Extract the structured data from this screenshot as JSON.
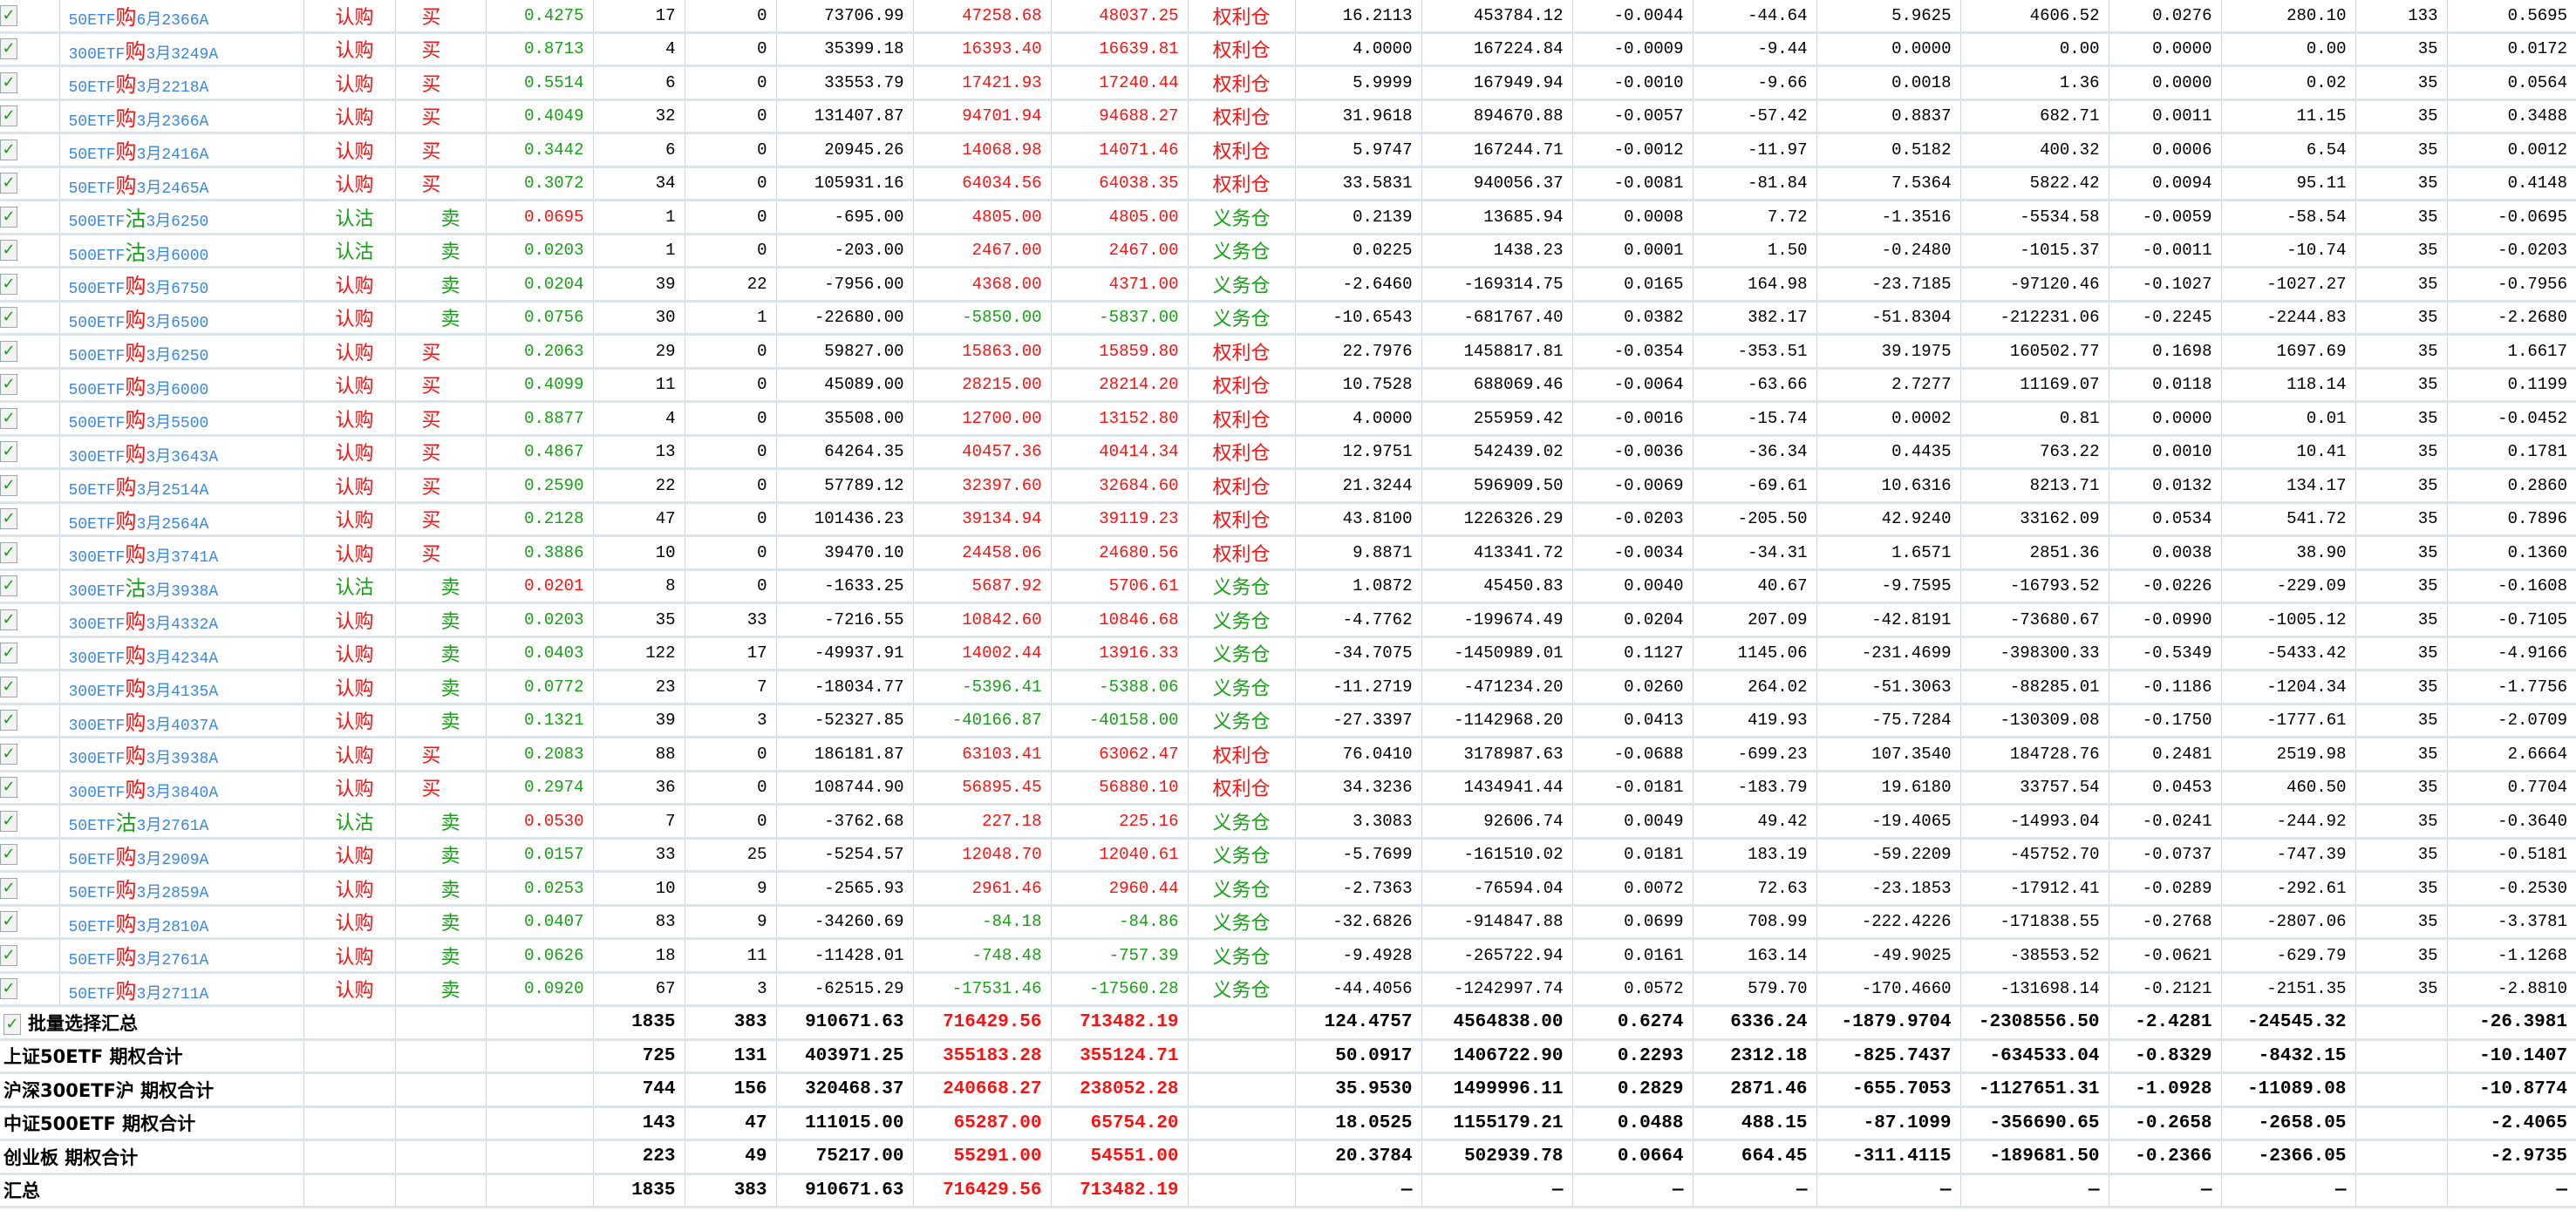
{
  "colors": {
    "red": "#ff1010",
    "green": "#16a016",
    "blue": "#3a86e6",
    "grid": "#c9d5e1"
  },
  "icons": {
    "checkbox": "checkbox-checked-icon"
  },
  "rows": [
    [
      "50ETF购6月2366A",
      "认购",
      "买",
      "0.4275",
      "green",
      "17",
      "0",
      "73706.99",
      "47258.68",
      "48037.25",
      "权利仓",
      "16.2113",
      "453784.12",
      "-0.0044",
      "-44.64",
      "5.9625",
      "4606.52",
      "0.0276",
      "280.10",
      "133",
      "0.5695"
    ],
    [
      "300ETF购3月3249A",
      "认购",
      "买",
      "0.8713",
      "green",
      "4",
      "0",
      "35399.18",
      "16393.40",
      "16639.81",
      "权利仓",
      "4.0000",
      "167224.84",
      "-0.0009",
      "-9.44",
      "0.0000",
      "0.00",
      "0.0000",
      "0.00",
      "35",
      "0.0172"
    ],
    [
      "50ETF购3月2218A",
      "认购",
      "买",
      "0.5514",
      "green",
      "6",
      "0",
      "33553.79",
      "17421.93",
      "17240.44",
      "权利仓",
      "5.9999",
      "167949.94",
      "-0.0010",
      "-9.66",
      "0.0018",
      "1.36",
      "0.0000",
      "0.02",
      "35",
      "0.0564"
    ],
    [
      "50ETF购3月2366A",
      "认购",
      "买",
      "0.4049",
      "green",
      "32",
      "0",
      "131407.87",
      "94701.94",
      "94688.27",
      "权利仓",
      "31.9618",
      "894670.88",
      "-0.0057",
      "-57.42",
      "0.8837",
      "682.71",
      "0.0011",
      "11.15",
      "35",
      "0.3488"
    ],
    [
      "50ETF购3月2416A",
      "认购",
      "买",
      "0.3442",
      "green",
      "6",
      "0",
      "20945.26",
      "14068.98",
      "14071.46",
      "权利仓",
      "5.9747",
      "167244.71",
      "-0.0012",
      "-11.97",
      "0.5182",
      "400.32",
      "0.0006",
      "6.54",
      "35",
      "0.0012"
    ],
    [
      "50ETF购3月2465A",
      "认购",
      "买",
      "0.3072",
      "green",
      "34",
      "0",
      "105931.16",
      "64034.56",
      "64038.35",
      "权利仓",
      "33.5831",
      "940056.37",
      "-0.0081",
      "-81.84",
      "7.5364",
      "5822.42",
      "0.0094",
      "95.11",
      "35",
      "0.4148"
    ],
    [
      "500ETF沽3月6250",
      "认沽",
      "卖",
      "0.0695",
      "red",
      "1",
      "0",
      "-695.00",
      "4805.00",
      "4805.00",
      "义务仓",
      "0.2139",
      "13685.94",
      "0.0008",
      "7.72",
      "-1.3516",
      "-5534.58",
      "-0.0059",
      "-58.54",
      "35",
      "-0.0695"
    ],
    [
      "500ETF沽3月6000",
      "认沽",
      "卖",
      "0.0203",
      "green",
      "1",
      "0",
      "-203.00",
      "2467.00",
      "2467.00",
      "义务仓",
      "0.0225",
      "1438.23",
      "0.0001",
      "1.50",
      "-0.2480",
      "-1015.37",
      "-0.0011",
      "-10.74",
      "35",
      "-0.0203"
    ],
    [
      "500ETF购3月6750",
      "认购",
      "卖",
      "0.0204",
      "green",
      "39",
      "22",
      "-7956.00",
      "4368.00",
      "4371.00",
      "义务仓",
      "-2.6460",
      "-169314.75",
      "0.0165",
      "164.98",
      "-23.7185",
      "-97120.46",
      "-0.1027",
      "-1027.27",
      "35",
      "-0.7956"
    ],
    [
      "500ETF购3月6500",
      "认购",
      "卖",
      "0.0756",
      "green",
      "30",
      "1",
      "-22680.00",
      "-5850.00",
      "-5837.00",
      "义务仓",
      "-10.6543",
      "-681767.40",
      "0.0382",
      "382.17",
      "-51.8304",
      "-212231.06",
      "-0.2245",
      "-2244.83",
      "35",
      "-2.2680"
    ],
    [
      "500ETF购3月6250",
      "认购",
      "买",
      "0.2063",
      "green",
      "29",
      "0",
      "59827.00",
      "15863.00",
      "15859.80",
      "权利仓",
      "22.7976",
      "1458817.81",
      "-0.0354",
      "-353.51",
      "39.1975",
      "160502.77",
      "0.1698",
      "1697.69",
      "35",
      "1.6617"
    ],
    [
      "500ETF购3月6000",
      "认购",
      "买",
      "0.4099",
      "green",
      "11",
      "0",
      "45089.00",
      "28215.00",
      "28214.20",
      "权利仓",
      "10.7528",
      "688069.46",
      "-0.0064",
      "-63.66",
      "2.7277",
      "11169.07",
      "0.0118",
      "118.14",
      "35",
      "0.1199"
    ],
    [
      "500ETF购3月5500",
      "认购",
      "买",
      "0.8877",
      "green",
      "4",
      "0",
      "35508.00",
      "12700.00",
      "13152.80",
      "权利仓",
      "4.0000",
      "255959.42",
      "-0.0016",
      "-15.74",
      "0.0002",
      "0.81",
      "0.0000",
      "0.01",
      "35",
      "-0.0452"
    ],
    [
      "300ETF购3月3643A",
      "认购",
      "买",
      "0.4867",
      "green",
      "13",
      "0",
      "64264.35",
      "40457.36",
      "40414.34",
      "权利仓",
      "12.9751",
      "542439.02",
      "-0.0036",
      "-36.34",
      "0.4435",
      "763.22",
      "0.0010",
      "10.41",
      "35",
      "0.1781"
    ],
    [
      "50ETF购3月2514A",
      "认购",
      "买",
      "0.2590",
      "green",
      "22",
      "0",
      "57789.12",
      "32397.60",
      "32684.60",
      "权利仓",
      "21.3244",
      "596909.50",
      "-0.0069",
      "-69.61",
      "10.6316",
      "8213.71",
      "0.0132",
      "134.17",
      "35",
      "0.2860"
    ],
    [
      "50ETF购3月2564A",
      "认购",
      "买",
      "0.2128",
      "green",
      "47",
      "0",
      "101436.23",
      "39134.94",
      "39119.23",
      "权利仓",
      "43.8100",
      "1226326.29",
      "-0.0203",
      "-205.50",
      "42.9240",
      "33162.09",
      "0.0534",
      "541.72",
      "35",
      "0.7896"
    ],
    [
      "300ETF购3月3741A",
      "认购",
      "买",
      "0.3886",
      "green",
      "10",
      "0",
      "39470.10",
      "24458.06",
      "24680.56",
      "权利仓",
      "9.8871",
      "413341.72",
      "-0.0034",
      "-34.31",
      "1.6571",
      "2851.36",
      "0.0038",
      "38.90",
      "35",
      "0.1360"
    ],
    [
      "300ETF沽3月3938A",
      "认沽",
      "卖",
      "0.0201",
      "red",
      "8",
      "0",
      "-1633.25",
      "5687.92",
      "5706.61",
      "义务仓",
      "1.0872",
      "45450.83",
      "0.0040",
      "40.67",
      "-9.7595",
      "-16793.52",
      "-0.0226",
      "-229.09",
      "35",
      "-0.1608"
    ],
    [
      "300ETF购3月4332A",
      "认购",
      "卖",
      "0.0203",
      "green",
      "35",
      "33",
      "-7216.55",
      "10842.60",
      "10846.68",
      "义务仓",
      "-4.7762",
      "-199674.49",
      "0.0204",
      "207.09",
      "-42.8191",
      "-73680.67",
      "-0.0990",
      "-1005.12",
      "35",
      "-0.7105"
    ],
    [
      "300ETF购3月4234A",
      "认购",
      "卖",
      "0.0403",
      "green",
      "122",
      "17",
      "-49937.91",
      "14002.44",
      "13916.33",
      "义务仓",
      "-34.7075",
      "-1450989.01",
      "0.1127",
      "1145.06",
      "-231.4699",
      "-398300.33",
      "-0.5349",
      "-5433.42",
      "35",
      "-4.9166"
    ],
    [
      "300ETF购3月4135A",
      "认购",
      "卖",
      "0.0772",
      "green",
      "23",
      "7",
      "-18034.77",
      "-5396.41",
      "-5388.06",
      "义务仓",
      "-11.2719",
      "-471234.20",
      "0.0260",
      "264.02",
      "-51.3063",
      "-88285.01",
      "-0.1186",
      "-1204.34",
      "35",
      "-1.7756"
    ],
    [
      "300ETF购3月4037A",
      "认购",
      "卖",
      "0.1321",
      "green",
      "39",
      "3",
      "-52327.85",
      "-40166.87",
      "-40158.00",
      "义务仓",
      "-27.3397",
      "-1142968.20",
      "0.0413",
      "419.93",
      "-75.7284",
      "-130309.08",
      "-0.1750",
      "-1777.61",
      "35",
      "-2.0709"
    ],
    [
      "300ETF购3月3938A",
      "认购",
      "买",
      "0.2083",
      "green",
      "88",
      "0",
      "186181.87",
      "63103.41",
      "63062.47",
      "权利仓",
      "76.0410",
      "3178987.63",
      "-0.0688",
      "-699.23",
      "107.3540",
      "184728.76",
      "0.2481",
      "2519.98",
      "35",
      "2.6664"
    ],
    [
      "300ETF购3月3840A",
      "认购",
      "买",
      "0.2974",
      "green",
      "36",
      "0",
      "108744.90",
      "56895.45",
      "56880.10",
      "权利仓",
      "34.3236",
      "1434941.44",
      "-0.0181",
      "-183.79",
      "19.6180",
      "33757.54",
      "0.0453",
      "460.50",
      "35",
      "0.7704"
    ],
    [
      "50ETF沽3月2761A",
      "认沽",
      "卖",
      "0.0530",
      "red",
      "7",
      "0",
      "-3762.68",
      "227.18",
      "225.16",
      "义务仓",
      "3.3083",
      "92606.74",
      "0.0049",
      "49.42",
      "-19.4065",
      "-14993.04",
      "-0.0241",
      "-244.92",
      "35",
      "-0.3640"
    ],
    [
      "50ETF购3月2909A",
      "认购",
      "卖",
      "0.0157",
      "green",
      "33",
      "25",
      "-5254.57",
      "12048.70",
      "12040.61",
      "义务仓",
      "-5.7699",
      "-161510.02",
      "0.0181",
      "183.19",
      "-59.2209",
      "-45752.70",
      "-0.0737",
      "-747.39",
      "35",
      "-0.5181"
    ],
    [
      "50ETF购3月2859A",
      "认购",
      "卖",
      "0.0253",
      "green",
      "10",
      "9",
      "-2565.93",
      "2961.46",
      "2960.44",
      "义务仓",
      "-2.7363",
      "-76594.04",
      "0.0072",
      "72.63",
      "-23.1853",
      "-17912.41",
      "-0.0289",
      "-292.61",
      "35",
      "-0.2530"
    ],
    [
      "50ETF购3月2810A",
      "认购",
      "卖",
      "0.0407",
      "green",
      "83",
      "9",
      "-34260.69",
      "-84.18",
      "-84.86",
      "义务仓",
      "-32.6826",
      "-914847.88",
      "0.0699",
      "708.99",
      "-222.4226",
      "-171838.55",
      "-0.2768",
      "-2807.06",
      "35",
      "-3.3781"
    ],
    [
      "50ETF购3月2761A",
      "认购",
      "卖",
      "0.0626",
      "green",
      "18",
      "11",
      "-11428.01",
      "-748.48",
      "-757.39",
      "义务仓",
      "-9.4928",
      "-265722.94",
      "0.0161",
      "163.14",
      "-49.9025",
      "-38553.52",
      "-0.0621",
      "-629.79",
      "35",
      "-1.1268"
    ],
    [
      "50ETF购3月2711A",
      "认购",
      "卖",
      "0.0920",
      "green",
      "67",
      "3",
      "-62515.29",
      "-17531.46",
      "-17560.28",
      "义务仓",
      "-44.4056",
      "-1242997.74",
      "0.0572",
      "579.70",
      "-170.4660",
      "-131698.14",
      "-0.2121",
      "-2151.35",
      "35",
      "-2.8810"
    ]
  ],
  "summary": [
    {
      "label": "批量选择汇总",
      "checkbox": true,
      "values": [
        "1835",
        "383",
        "910671.63",
        "716429.56",
        "713482.19",
        "124.4757",
        "4564838.00",
        "0.6274",
        "6336.24",
        "-1879.9704",
        "-2308556.50",
        "-2.4281",
        "-24545.32",
        "",
        "-26.3981"
      ]
    },
    {
      "label": "上证50ETF 期权合计",
      "checkbox": false,
      "values": [
        "725",
        "131",
        "403971.25",
        "355183.28",
        "355124.71",
        "50.0917",
        "1406722.90",
        "0.2293",
        "2312.18",
        "-825.7437",
        "-634533.04",
        "-0.8329",
        "-8432.15",
        "",
        "-10.1407"
      ]
    },
    {
      "label": "沪深300ETF沪 期权合计",
      "checkbox": false,
      "values": [
        "744",
        "156",
        "320468.37",
        "240668.27",
        "238052.28",
        "35.9530",
        "1499996.11",
        "0.2829",
        "2871.46",
        "-655.7053",
        "-1127651.31",
        "-1.0928",
        "-11089.08",
        "",
        "-10.8774"
      ]
    },
    {
      "label": "中证500ETF 期权合计",
      "checkbox": false,
      "values": [
        "143",
        "47",
        "111015.00",
        "65287.00",
        "65754.20",
        "18.0525",
        "1155179.21",
        "0.0488",
        "488.15",
        "-87.1099",
        "-356690.65",
        "-0.2658",
        "-2658.05",
        "",
        "-2.4065"
      ]
    },
    {
      "label": "创业板 期权合计",
      "checkbox": false,
      "values": [
        "223",
        "49",
        "75217.00",
        "55291.00",
        "54551.00",
        "20.3784",
        "502939.78",
        "0.0664",
        "664.45",
        "-311.4115",
        "-189681.50",
        "-0.2366",
        "-2366.05",
        "",
        "-2.9735"
      ]
    },
    {
      "label": "汇总",
      "checkbox": false,
      "values": [
        "1835",
        "383",
        "910671.63",
        "716429.56",
        "713482.19",
        "—",
        "—",
        "—",
        "—",
        "—",
        "—",
        "—",
        "—",
        "",
        "—"
      ]
    }
  ]
}
